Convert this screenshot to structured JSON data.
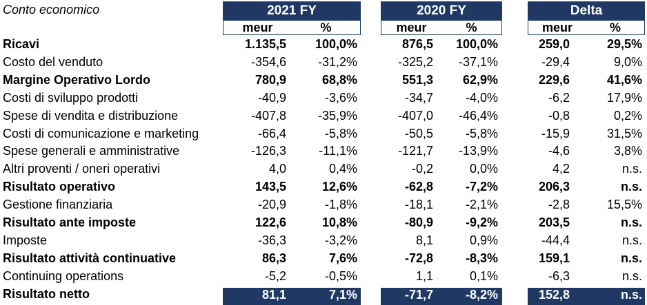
{
  "title": "Conto economico",
  "groups": [
    {
      "label": "2021 FY",
      "units": [
        "meur",
        "%"
      ]
    },
    {
      "label": "2020 FY",
      "units": [
        "meur",
        "%"
      ]
    },
    {
      "label": "Delta",
      "units": [
        "meur",
        "%"
      ]
    }
  ],
  "rows": [
    {
      "label": "Ricavi",
      "bold": true,
      "v": [
        "1.135,5",
        "100,0%",
        "876,5",
        "100,0%",
        "259,0",
        "29,5%"
      ]
    },
    {
      "label": "Costo del venduto",
      "bold": false,
      "v": [
        "-354,6",
        "-31,2%",
        "-325,2",
        "-37,1%",
        "-29,4",
        "9,0%"
      ]
    },
    {
      "label": "Margine Operativo Lordo",
      "bold": true,
      "v": [
        "780,9",
        "68,8%",
        "551,3",
        "62,9%",
        "229,6",
        "41,6%"
      ]
    },
    {
      "label": "Costi di sviluppo prodotti",
      "bold": false,
      "v": [
        "-40,9",
        "-3,6%",
        "-34,7",
        "-4,0%",
        "-6,2",
        "17,9%"
      ]
    },
    {
      "label": "Spese di vendita e distribuzione",
      "bold": false,
      "v": [
        "-407,8",
        "-35,9%",
        "-407,0",
        "-46,4%",
        "-0,8",
        "0,2%"
      ]
    },
    {
      "label": "Costi di comunicazione e marketing",
      "bold": false,
      "v": [
        "-66,4",
        "-5,8%",
        "-50,5",
        "-5,8%",
        "-15,9",
        "31,5%"
      ]
    },
    {
      "label": "Spese generali e amministrative",
      "bold": false,
      "v": [
        "-126,3",
        "-11,1%",
        "-121,7",
        "-13,9%",
        "-4,6",
        "3,8%"
      ]
    },
    {
      "label": "Altri proventi / oneri operativi",
      "bold": false,
      "v": [
        "4,0",
        "0,4%",
        "-0,2",
        "0,0%",
        "4,2",
        "n.s."
      ]
    },
    {
      "label": "Risultato operativo",
      "bold": true,
      "v": [
        "143,5",
        "12,6%",
        "-62,8",
        "-7,2%",
        "206,3",
        "n.s."
      ]
    },
    {
      "label": "Gestione finanziaria",
      "bold": false,
      "v": [
        "-20,9",
        "-1,8%",
        "-18,1",
        "-2,1%",
        "-2,8",
        "15,5%"
      ]
    },
    {
      "label": "Risultato ante imposte",
      "bold": true,
      "v": [
        "122,6",
        "10,8%",
        "-80,9",
        "-9,2%",
        "203,5",
        "n.s."
      ]
    },
    {
      "label": "Imposte",
      "bold": false,
      "v": [
        "-36,3",
        "-3,2%",
        "8,1",
        "0,9%",
        "-44,4",
        "n.s."
      ]
    },
    {
      "label": "Risultato attività continuative",
      "bold": true,
      "v": [
        "86,3",
        "7,6%",
        "-72,8",
        "-8,3%",
        "159,1",
        "n.s."
      ]
    },
    {
      "label": "Continuing operations",
      "bold": false,
      "v": [
        "-5,2",
        "-0,5%",
        "1,1",
        "0,1%",
        "-6,3",
        "n.s."
      ]
    },
    {
      "label": "Risultato netto",
      "bold": true,
      "highlight": true,
      "v": [
        "81,1",
        "7,1%",
        "-71,7",
        "-8,2%",
        "152,8",
        "n.s."
      ]
    }
  ],
  "colors": {
    "header_bg": "#1f3864",
    "header_text": "#ffffff"
  }
}
